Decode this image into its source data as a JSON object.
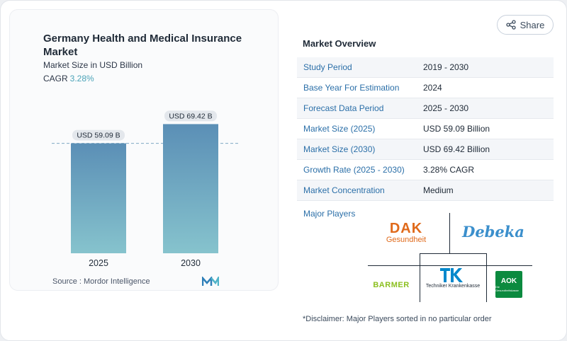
{
  "chart": {
    "title": "Germany Health and Medical Insurance Market",
    "subtitle": "Market Size in USD Billion",
    "cagr_label": "CAGR",
    "cagr_value": "3.28%",
    "source": "Source :  Mordor Intelligence"
  },
  "chart_data": {
    "type": "bar",
    "categories": [
      "2025",
      "2030"
    ],
    "values": [
      59.09,
      69.42
    ],
    "data_labels": [
      "USD 59.09 B",
      "USD 69.42 B"
    ],
    "title": "Germany Health and Medical Insurance Market",
    "ylabel": "Market Size in USD Billion",
    "reference_line": 59.09,
    "grid": false,
    "legend": "none"
  },
  "share": {
    "label": "Share"
  },
  "overview": {
    "title": "Market Overview",
    "rows": [
      {
        "key": "Study Period",
        "value": "2019 - 2030"
      },
      {
        "key": "Base Year For Estimation",
        "value": "2024"
      },
      {
        "key": "Forecast Data Period",
        "value": "2025 - 2030"
      },
      {
        "key": "Market Size (2025)",
        "value": "USD 59.09 Billion"
      },
      {
        "key": "Market Size (2030)",
        "value": "USD 69.42 Billion"
      },
      {
        "key": "Growth Rate (2025 - 2030)",
        "value": "3.28% CAGR"
      },
      {
        "key": "Market Concentration",
        "value": "Medium"
      }
    ],
    "players_label": "Major Players"
  },
  "players": {
    "dak_top": "DAK",
    "dak_bottom": "Gesundheit",
    "debeka": "Debeka",
    "barmer": "BARMER",
    "tk_sub": "Techniker Krankenkasse",
    "aok": "AOK",
    "aok_sub": "Die Gesundheitskasse"
  },
  "colors": {
    "bar_top": "#5b8fb6",
    "bar_bottom": "#86c3cd",
    "accent": "#2b6fa8",
    "cagr": "#4aa3b8"
  },
  "disclaimer": "*Disclaimer: Major Players sorted in no particular order"
}
